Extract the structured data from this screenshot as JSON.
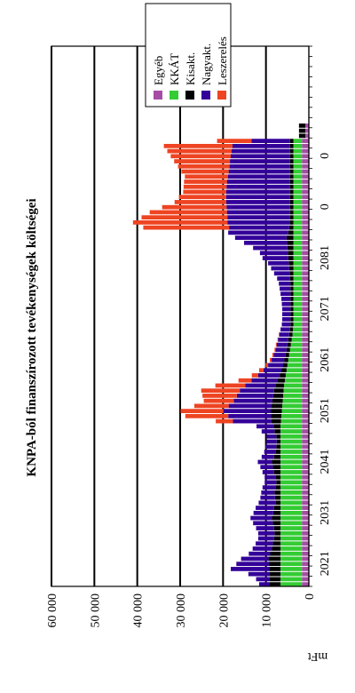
{
  "chart_data": {
    "type": "bar",
    "stacked": true,
    "orientation": "rotated-90",
    "title": "KNPA-ból finanszírozott tevékenységek költségei",
    "ylabel": "mFt",
    "ylim": [
      0,
      60000
    ],
    "yticks": [
      "0",
      "10 000",
      "20 000",
      "30 000",
      "40 000",
      "50 000",
      "60 000"
    ],
    "grid": true,
    "legend_position": "top-right",
    "x_labels": [
      "2021",
      "2031",
      "2041",
      "2051",
      "2061",
      "2071",
      "2081",
      "0",
      "0"
    ],
    "label_every": 10,
    "categories_count": 106,
    "series": [
      {
        "name": "Egyéb",
        "color": "#a64ca6",
        "values": [
          1600,
          1600,
          1600,
          1600,
          1600,
          1600,
          1600,
          1600,
          1600,
          1600,
          1600,
          1600,
          1600,
          1600,
          1600,
          1600,
          1600,
          1600,
          1600,
          1600,
          1600,
          1600,
          1600,
          1600,
          1600,
          1600,
          1600,
          1600,
          1600,
          1600,
          1600,
          1600,
          1600,
          1600,
          1600,
          1600,
          1600,
          1600,
          1600,
          1600,
          1600,
          1600,
          1600,
          1600,
          1600,
          1600,
          1600,
          1600,
          1600,
          1600,
          1600,
          1600,
          1600,
          1600,
          1600,
          1600,
          1600,
          1600,
          1600,
          1600,
          1600,
          1600,
          1600,
          1600,
          1600,
          1600,
          1600,
          1600,
          1600,
          1600,
          1600,
          1600,
          1600,
          1600,
          1600,
          1600,
          1600,
          1600,
          1600,
          1600,
          1600,
          1600,
          1600,
          1600,
          1600,
          1600,
          1600,
          1600,
          800,
          800,
          800,
          0,
          0,
          0,
          0,
          0,
          0,
          0,
          0,
          0,
          0,
          0,
          0,
          0,
          0,
          0
        ]
      },
      {
        "name": "KKÁT",
        "color": "#33cc33",
        "values": [
          5000,
          5000,
          5000,
          5000,
          5000,
          5000,
          5000,
          5000,
          5000,
          5000,
          5000,
          5000,
          5000,
          5000,
          5000,
          5000,
          5000,
          5000,
          5000,
          5000,
          5000,
          5000,
          5000,
          5000,
          5000,
          5000,
          5000,
          5000,
          5000,
          5000,
          5000,
          5000,
          4900,
          4800,
          4700,
          4600,
          4500,
          4400,
          4300,
          4200,
          4000,
          3800,
          3600,
          3400,
          3200,
          3000,
          2800,
          2600,
          2400,
          2200,
          2100,
          2000,
          2000,
          2000,
          2000,
          2000,
          2000,
          2000,
          2000,
          2000,
          2000,
          2000,
          2000,
          2000,
          2000,
          2000,
          2000,
          2000,
          2000,
          2000,
          2000,
          2000,
          2000,
          2000,
          2000,
          2000,
          2000,
          2000,
          2000,
          2000,
          2000,
          2000,
          2000,
          2000,
          2000,
          2000,
          2000,
          2000,
          0,
          0,
          0,
          0,
          0,
          0,
          0,
          0,
          0,
          0,
          0,
          0,
          0,
          0,
          0,
          0,
          0,
          0
        ]
      },
      {
        "name": "Kisakt.",
        "color": "#000000",
        "values": [
          2500,
          2500,
          2500,
          2600,
          2700,
          2800,
          2400,
          2000,
          1800,
          1500,
          1400,
          1500,
          1800,
          2000,
          1700,
          1500,
          1200,
          1300,
          1400,
          1200,
          1000,
          1200,
          1500,
          1800,
          2000,
          1500,
          1200,
          1000,
          900,
          1000,
          1400,
          1600,
          2200,
          2400,
          2600,
          2500,
          2400,
          2300,
          2200,
          2000,
          1800,
          1400,
          1200,
          1000,
          900,
          800,
          800,
          800,
          800,
          800,
          700,
          700,
          700,
          700,
          700,
          700,
          700,
          700,
          700,
          700,
          800,
          900,
          1000,
          1100,
          1200,
          1300,
          1400,
          1500,
          1600,
          1200,
          1000,
          900,
          800,
          800,
          800,
          800,
          800,
          800,
          800,
          800,
          800,
          800,
          800,
          800,
          800,
          800,
          800,
          800,
          1500,
          1500,
          1500,
          0,
          0,
          0,
          0,
          0,
          0,
          0,
          0,
          0,
          0,
          0,
          0,
          0,
          0,
          0
        ]
      },
      {
        "name": "Nagyakt.",
        "color": "#330099",
        "values": [
          2500,
          3200,
          5000,
          9000,
          7600,
          6400,
          5000,
          4500,
          4000,
          3700,
          3800,
          4200,
          4600,
          5000,
          4600,
          4300,
          3900,
          3400,
          3100,
          3000,
          2700,
          2500,
          2700,
          2900,
          3300,
          2900,
          2600,
          2500,
          2400,
          2300,
          3000,
          4000,
          9000,
          10000,
          11000,
          10000,
          9000,
          8500,
          8000,
          7000,
          6000,
          5000,
          4200,
          3500,
          3000,
          2800,
          2600,
          2500,
          2400,
          2300,
          2200,
          2000,
          1900,
          1900,
          1900,
          2000,
          2100,
          2300,
          2500,
          2700,
          3000,
          3600,
          4200,
          4800,
          6000,
          6500,
          8000,
          10000,
          12000,
          14000,
          14000,
          14500,
          14600,
          14700,
          14800,
          14900,
          14900,
          14900,
          14800,
          14700,
          14500,
          14300,
          14100,
          14000,
          13800,
          13600,
          13400,
          9000,
          0,
          0,
          0,
          0,
          0,
          0,
          0,
          0,
          0,
          0,
          0,
          0,
          0,
          0,
          0,
          0,
          0,
          0
        ]
      },
      {
        "name": "Leszerelés",
        "color": "#ee4422",
        "values": [
          0,
          0,
          0,
          0,
          0,
          0,
          0,
          0,
          0,
          0,
          0,
          0,
          0,
          0,
          0,
          0,
          0,
          0,
          0,
          0,
          0,
          0,
          0,
          0,
          0,
          0,
          0,
          0,
          0,
          0,
          0,
          0,
          4000,
          10000,
          10000,
          8000,
          7000,
          8000,
          9000,
          7000,
          3000,
          1500,
          1000,
          600,
          400,
          300,
          200,
          200,
          100,
          100,
          0,
          0,
          0,
          0,
          0,
          0,
          0,
          0,
          0,
          0,
          0,
          0,
          0,
          0,
          0,
          0,
          0,
          0,
          0,
          0,
          20000,
          22000,
          20000,
          18000,
          15000,
          12000,
          11000,
          10000,
          10000,
          10000,
          10000,
          11000,
          12000,
          13000,
          14000,
          15000,
          16000,
          8000,
          0,
          0,
          0,
          0,
          0,
          0,
          0,
          0,
          0,
          0,
          0,
          0,
          0,
          0,
          0,
          0,
          0,
          0
        ]
      }
    ]
  }
}
